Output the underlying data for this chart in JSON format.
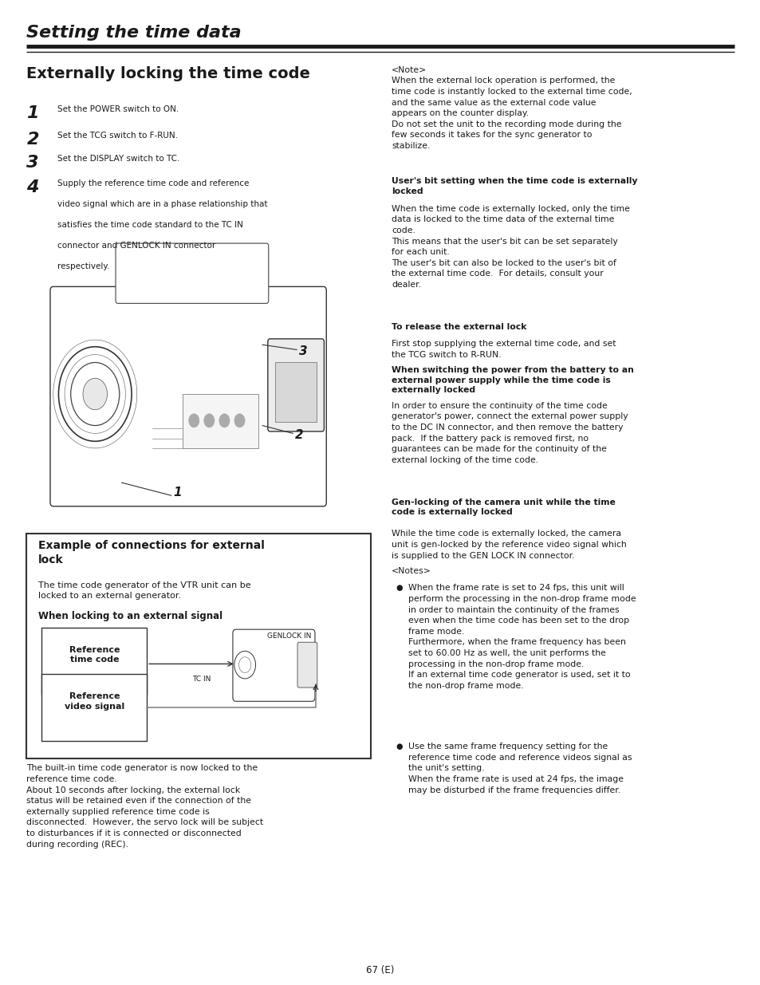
{
  "page_title": "Setting the time data",
  "section_title": "Externally locking the time code",
  "bg_color": "#ffffff",
  "text_color": "#1a1a1a",
  "steps": [
    {
      "num": "1",
      "text": "Set the POWER switch to ON."
    },
    {
      "num": "2",
      "text": "Set the TCG switch to F-RUN."
    },
    {
      "num": "3",
      "text": "Set the DISPLAY switch to TC."
    },
    {
      "num": "4",
      "text": "Supply the reference time code and reference\nvideo signal which are in a phase relationship that\nsatisfies the time code standard to the TC IN\nconnector and GENLOCK IN connector\nrespectively."
    }
  ],
  "note_right": "<Note>\nWhen the external lock operation is performed, the\ntime code is instantly locked to the external time code,\nand the same value as the external code value\nappears on the counter display.\nDo not set the unit to the recording mode during the\nfew seconds it takes for the sync generator to\nstabilize.",
  "user_bit_title": "User's bit setting when the time code is externally\nlocked",
  "user_bit_text": "When the time code is externally locked, only the time\ndata is locked to the time data of the external time\ncode.\nThis means that the user's bit can be set separately\nfor each unit.\nThe user's bit can also be locked to the user's bit of\nthe external time code.  For details, consult your\ndealer.",
  "release_title": "To release the external lock",
  "release_text": "First stop supplying the external time code, and set\nthe TCG switch to R-RUN.",
  "switching_title": "When switching the power from the battery to an\nexternal power supply while the time code is\nexternally locked",
  "switching_text": "In order to ensure the continuity of the time code\ngenerator's power, connect the external power supply\nto the DC IN connector, and then remove the battery\npack.  If the battery pack is removed first, no\nguarantees can be made for the continuity of the\nexternal locking of the time code.",
  "genlocking_title": "Gen-locking of the camera unit while the time\ncode is externally locked",
  "genlocking_text": "While the time code is externally locked, the camera\nunit is gen-locked by the reference video signal which\nis supplied to the GEN LOCK IN connector.",
  "notes2_title": "<Notes>",
  "notes2_text1": "When the frame rate is set to 24 fps, this unit will\nperform the processing in the non-drop frame mode\nin order to maintain the continuity of the frames\neven when the time code has been set to the drop\nframe mode.\nFurthermore, when the frame frequency has been\nset to 60.00 Hz as well, the unit performs the\nprocessing in the non-drop frame mode.\nIf an external time code generator is used, set it to\nthe non-drop frame mode.",
  "notes2_text2": "Use the same frame frequency setting for the\nreference time code and reference videos signal as\nthe unit's setting.\nWhen the frame rate is used at 24 fps, the image\nmay be disturbed if the frame frequencies differ.",
  "box_title": "Example of connections for external\nlock",
  "box_body": "The time code generator of the VTR unit can be\nlocked to an external generator.",
  "box_signal_title": "When locking to an external signal",
  "ref_tc_label": "Reference\ntime code",
  "ref_vs_label": "Reference\nvideo signal",
  "tc_in_label": "TC IN",
  "genlock_in_label": "GENLOCK IN",
  "bottom_text": "The built-in time code generator is now locked to the\nreference time code.\nAbout 10 seconds after locking, the external lock\nstatus will be retained even if the connection of the\nexternally supplied reference time code is\ndisconnected.  However, the servo lock will be subject\nto disturbances if it is connected or disconnected\nduring recording (REC).",
  "page_number": "67 (E)"
}
